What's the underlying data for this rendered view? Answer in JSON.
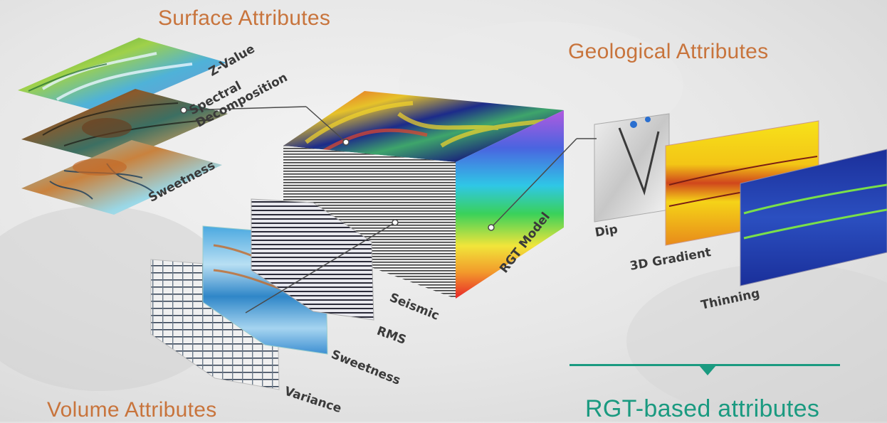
{
  "headings": {
    "surface": "Surface Attributes",
    "geological": "Geological Attributes",
    "volume": "Volume Attributes",
    "rgt_based": "RGT-based attributes"
  },
  "labels": {
    "z_value": "Z-Value",
    "spectral_decomposition": "Spectral\nDecomposition",
    "sweetness_surface": "Sweetness",
    "seismic": "Seismic",
    "rms": "RMS",
    "sweetness_volume": "Sweetness",
    "variance": "Variance",
    "rgt_model": "RGT Model",
    "dip": "Dip",
    "gradient_3d": "3D Gradient",
    "thinning": "Thinning"
  },
  "colors": {
    "heading_orange": "#c8743c",
    "accent_green": "#1a9a80",
    "label_text": "#3a3a3a"
  }
}
